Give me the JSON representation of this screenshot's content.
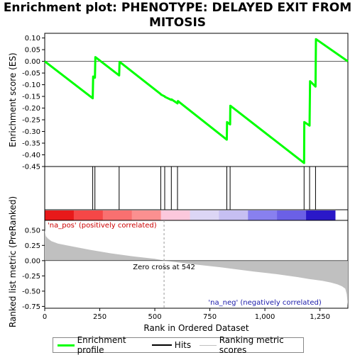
{
  "chart_data": {
    "type": "line",
    "title": "Enrichment plot: PHENOTYPE: DELAYED EXIT FROM MITOSIS",
    "xlabel": "Rank in Ordered Dataset",
    "top_panel": {
      "ylabel": "Enrichment score (ES)",
      "ylim": [
        -0.45,
        0.12
      ],
      "yticks": [
        "0.10",
        "0.05",
        "0.00",
        "-0.05",
        "-0.10",
        "-0.15",
        "-0.20",
        "-0.25",
        "-0.30",
        "-0.35",
        "-0.40",
        "-0.45"
      ],
      "series": [
        {
          "name": "Enrichment profile",
          "color": "#00ff00",
          "x": [
            0,
            218,
            220,
            228,
            230,
            338,
            340,
            527,
            528,
            545,
            546,
            575,
            576,
            603,
            605,
            827,
            828,
            842,
            843,
            1178,
            1179,
            1203,
            1205,
            1230,
            1232,
            1377
          ],
          "y": [
            0.0,
            -0.158,
            -0.065,
            -0.07,
            0.018,
            -0.06,
            -0.002,
            -0.14,
            -0.142,
            -0.15,
            -0.152,
            -0.165,
            -0.163,
            -0.18,
            -0.17,
            -0.335,
            -0.26,
            -0.27,
            -0.19,
            -0.435,
            -0.26,
            -0.275,
            -0.085,
            -0.108,
            0.095,
            0.0
          ]
        }
      ]
    },
    "hits_panel": {
      "name": "Hits",
      "hit_ranks": [
        218,
        228,
        338,
        527,
        545,
        575,
        603,
        827,
        842,
        1178,
        1203,
        1230
      ]
    },
    "rank_bar_colors": [
      "#e8191a",
      "#f54747",
      "#f97070",
      "#fb9090",
      "#fcc8dc",
      "#dcd6f5",
      "#c6bff2",
      "#8880ef",
      "#6b60e6",
      "#2a18c8"
    ],
    "bottom_panel": {
      "ylabel": "Ranked list metric (PreRanked)",
      "ylim": [
        -0.78,
        0.66
      ],
      "yticks": [
        "0.50",
        "0.25",
        "0.00",
        "-0.25",
        "-0.50",
        "-0.75"
      ],
      "series_name": "Ranking metric scores",
      "series_color": "#c0c0c0",
      "x": [
        0,
        5,
        15,
        30,
        60,
        100,
        200,
        300,
        400,
        500,
        542,
        650,
        800,
        950,
        1050,
        1150,
        1200,
        1260,
        1300,
        1330,
        1350,
        1365,
        1372,
        1377
      ],
      "y": [
        0.5,
        0.4,
        0.36,
        0.32,
        0.28,
        0.25,
        0.18,
        0.12,
        0.07,
        0.03,
        0.0,
        -0.05,
        -0.11,
        -0.18,
        -0.22,
        -0.27,
        -0.3,
        -0.33,
        -0.36,
        -0.39,
        -0.42,
        -0.46,
        -0.55,
        -0.74
      ],
      "annotations": {
        "pos": "'na_pos' (positively correlated)",
        "zero": "Zero cross at 542",
        "neg": "'na_neg' (negatively correlated)"
      },
      "zero_cross": 542
    },
    "xlim": [
      0,
      1377
    ],
    "xticks": [
      0,
      250,
      500,
      750,
      1000,
      1250
    ],
    "xtick_labels": [
      "0",
      "250",
      "500",
      "750",
      "1,000",
      "1,250"
    ]
  },
  "legend": {
    "items": [
      {
        "label": "Enrichment profile",
        "color": "#00ff00"
      },
      {
        "label": "Hits",
        "color": "#000000"
      },
      {
        "label": "Ranking metric scores",
        "color": "#c0c0c0"
      }
    ]
  }
}
